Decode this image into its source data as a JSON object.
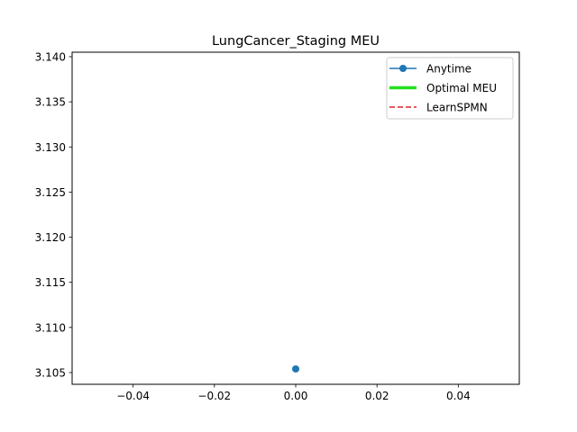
{
  "chart_data": {
    "type": "line",
    "title": "LungCancer_Staging MEU",
    "xlabel": "",
    "ylabel": "",
    "xlim": [
      -0.055,
      0.055
    ],
    "ylim": [
      3.1037,
      3.1405
    ],
    "x_ticks": [
      -0.04,
      -0.02,
      0.0,
      0.02,
      0.04
    ],
    "x_tick_labels": [
      "−0.04",
      "−0.02",
      "0.00",
      "0.02",
      "0.04"
    ],
    "y_ticks": [
      3.105,
      3.11,
      3.115,
      3.12,
      3.125,
      3.13,
      3.135,
      3.14
    ],
    "y_tick_labels": [
      "3.105",
      "3.110",
      "3.115",
      "3.120",
      "3.125",
      "3.130",
      "3.135",
      "3.140"
    ],
    "grid": false,
    "legend_position": "top-right",
    "series": [
      {
        "name": "Anytime",
        "color": "#1f77b4",
        "style": "solid-marker",
        "x": [
          0.0
        ],
        "y": [
          3.1054
        ]
      },
      {
        "name": "Optimal MEU",
        "color": "#22e01e",
        "style": "solid-thick",
        "x": [],
        "y": []
      },
      {
        "name": "LearnSPMN",
        "color": "#d62728",
        "style": "dashed",
        "x": [],
        "y": []
      }
    ]
  }
}
